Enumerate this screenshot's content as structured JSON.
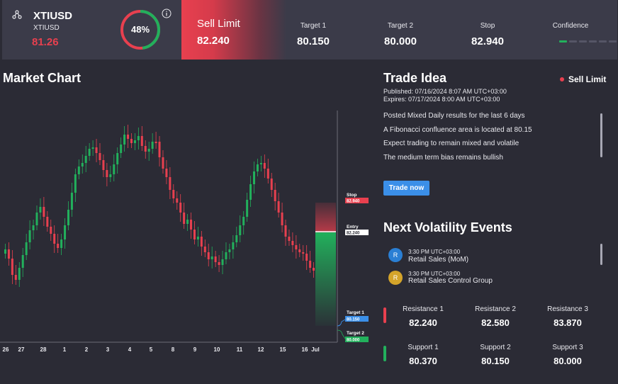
{
  "header": {
    "symbol": "XTIUSD",
    "symbol_sub": "XTIUSD",
    "price": "81.26",
    "gauge_percent": 48,
    "gauge_label": "48%",
    "order_type": "Sell Limit",
    "order_price": "82.240",
    "stats": [
      {
        "label": "Target 1",
        "value": "80.150"
      },
      {
        "label": "Target 2",
        "value": "80.000"
      },
      {
        "label": "Stop",
        "value": "82.940"
      }
    ],
    "confidence_label": "Confidence",
    "confidence_level": 1,
    "confidence_total": 6
  },
  "chart": {
    "title": "Market Chart",
    "x_labels": [
      "26",
      "27",
      "28",
      "1",
      "2",
      "3",
      "4",
      "5",
      "8",
      "9",
      "10",
      "11",
      "12",
      "15",
      "16",
      "Jul"
    ],
    "levels": [
      {
        "name": "Stop",
        "value": "82.940"
      },
      {
        "name": "Entry",
        "value": "82.240"
      },
      {
        "name": "Target 1",
        "value": "80.150"
      },
      {
        "name": "Target 2",
        "value": "80.000"
      }
    ]
  },
  "trade_idea": {
    "title": "Trade Idea",
    "badge": "Sell Limit",
    "published": "Published: 07/16/2024 8:07 AM UTC+03:00",
    "expires": "Expires:  07/17/2024 8:00 AM UTC+03:00",
    "lines": [
      "Posted Mixed Daily results for the last 6 days",
      "A Fibonacci confluence area is located at 80.15",
      "Expect trading to remain mixed and volatile",
      "The medium term bias remains bullish"
    ],
    "button": "Trade now"
  },
  "volatility": {
    "title": "Next Volatility Events",
    "events": [
      {
        "icon": "R",
        "time": "3:30 PM UTC+03:00",
        "name": "Retail Sales (MoM)",
        "color": "#2a7fd4"
      },
      {
        "icon": "R",
        "time": "3:30 PM UTC+03:00",
        "name": "Retail Sales Control Group",
        "color": "#d4a42a"
      }
    ]
  },
  "levels": {
    "resistance": [
      {
        "label": "Resistance 1",
        "value": "82.240"
      },
      {
        "label": "Resistance 2",
        "value": "82.580"
      },
      {
        "label": "Resistance 3",
        "value": "83.870"
      }
    ],
    "support": [
      {
        "label": "Support 1",
        "value": "80.370"
      },
      {
        "label": "Support 2",
        "value": "80.150"
      },
      {
        "label": "Support 3",
        "value": "80.000"
      }
    ]
  },
  "colors": {
    "up": "#22b05c",
    "down": "#e8404f",
    "accent": "#3b8fe8",
    "panel": "#3b3b49",
    "bg": "#2b2b35"
  }
}
